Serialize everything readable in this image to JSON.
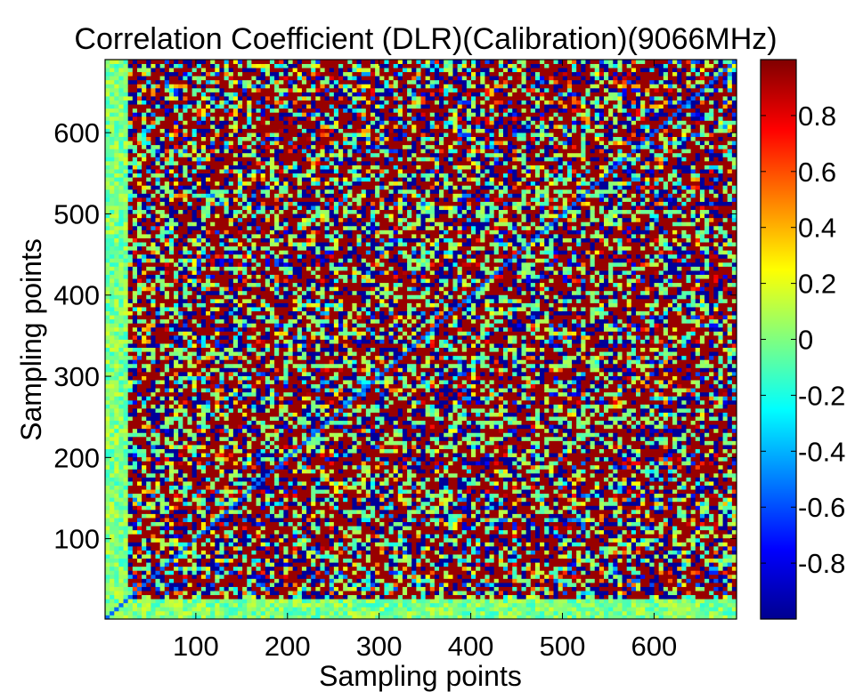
{
  "chart_data": {
    "type": "heatmap",
    "title": "Correlation Coefficient (DLR)(Calibration)(9066MHz)",
    "xlabel": "Sampling points",
    "ylabel": "Sampling points",
    "xlim": [
      1,
      690
    ],
    "ylim": [
      1,
      690
    ],
    "xticks": [
      100,
      200,
      300,
      400,
      500,
      600
    ],
    "yticks": [
      100,
      200,
      300,
      400,
      500,
      600
    ],
    "xtick_labels": [
      "100",
      "200",
      "300",
      "400",
      "500",
      "600"
    ],
    "ytick_labels": [
      "100",
      "200",
      "300",
      "400",
      "500",
      "600"
    ],
    "value_range": [
      -1,
      1
    ],
    "colormap": "jet",
    "diagonal_value": 1,
    "colorbar": {
      "location": "right",
      "ticks": [
        0.8,
        0.6,
        0.4,
        0.2,
        0,
        -0.2,
        -0.4,
        -0.6,
        -0.8
      ],
      "tick_labels": [
        "0.8",
        "0.6",
        "0.4",
        "0.2",
        "0",
        "-0.2",
        "-0.4",
        "-0.6",
        "-0.8"
      ]
    },
    "grid": false
  }
}
